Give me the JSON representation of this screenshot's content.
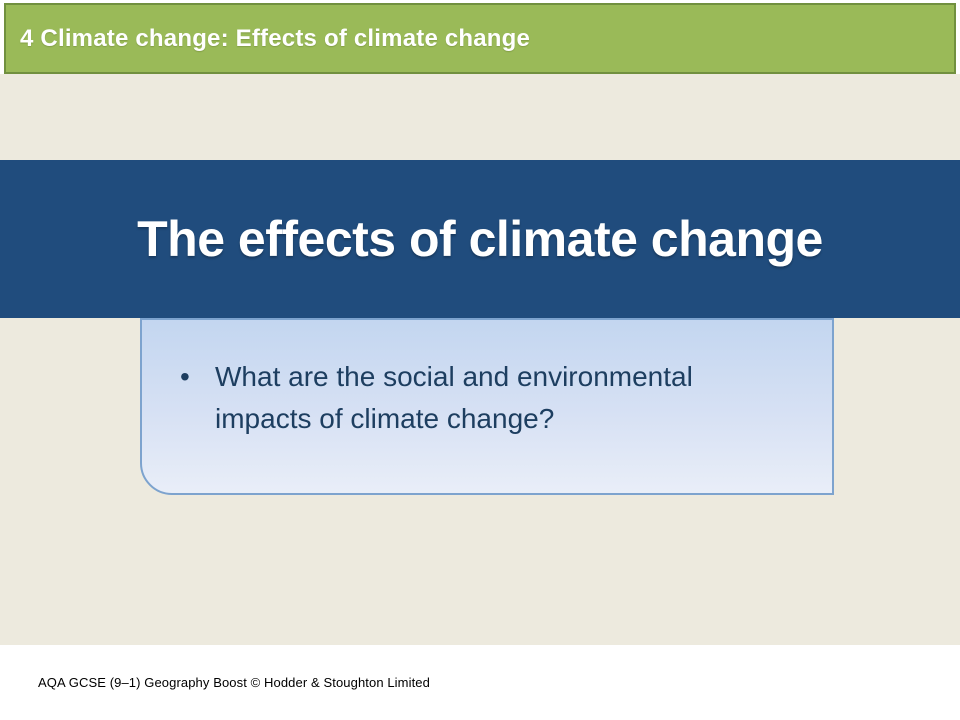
{
  "slide": {
    "header": {
      "label": "4 Climate change: Effects of climate change"
    },
    "title_banner": {
      "title": "The effects of climate change"
    },
    "content_box": {
      "bullet_marker": "•",
      "bullets": [
        "What are the social and environmental impacts of climate change?"
      ]
    },
    "footer": {
      "copyright": "AQA GCSE (9–1) Geography Boost © Hodder & Stoughton Limited"
    }
  },
  "colors": {
    "header_green": "#9ABA58",
    "header_border_green": "#71903F",
    "header_text": "#FFFFFF",
    "banner_blue": "#204C7D",
    "banner_text": "#FFFFFF",
    "box_border_blue": "#7DA3CE",
    "box_gradient_top": "#C3D6F0",
    "box_gradient_bottom": "#E9EEF8",
    "bullet_text_navy": "#1D3E60",
    "slide_background_cream": "#EDEADE",
    "footer_background": "#FFFFFF",
    "footer_text": "#000000"
  }
}
